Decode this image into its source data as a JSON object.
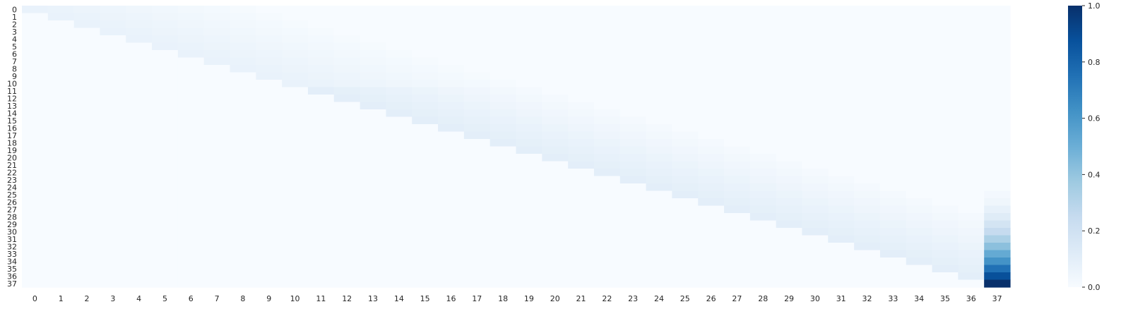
{
  "chart_data": {
    "type": "heatmap",
    "title": "",
    "xlabel": "",
    "ylabel": "",
    "x_labels": [
      "0",
      "1",
      "2",
      "3",
      "4",
      "5",
      "6",
      "7",
      "8",
      "9",
      "10",
      "11",
      "12",
      "13",
      "14",
      "15",
      "16",
      "17",
      "18",
      "19",
      "20",
      "21",
      "22",
      "23",
      "24",
      "25",
      "26",
      "27",
      "28",
      "29",
      "30",
      "31",
      "32",
      "33",
      "34",
      "35",
      "36",
      "37"
    ],
    "y_labels": [
      "0",
      "1",
      "2",
      "3",
      "4",
      "5",
      "6",
      "7",
      "8",
      "9",
      "10",
      "11",
      "12",
      "13",
      "14",
      "15",
      "16",
      "17",
      "18",
      "19",
      "20",
      "21",
      "22",
      "23",
      "24",
      "25",
      "26",
      "27",
      "28",
      "29",
      "30",
      "31",
      "32",
      "33",
      "34",
      "35",
      "36",
      "37"
    ],
    "value_range": [
      0,
      1
    ],
    "colormap": "Blues",
    "colorbar_ticks": [
      "0.0",
      "0.2",
      "0.4",
      "0.6",
      "0.8",
      "1.0"
    ],
    "colorbar_tick_values": [
      0,
      0.2,
      0.4,
      0.6,
      0.8,
      1.0
    ],
    "structure": "row i has nonzero values only for columns i..i+8 (upper band); diagonal ~0.06-0.10 fading to ~0.01 at the band edge; column 37 rises from ~0.02 at row 25 to 1.0 at row 37",
    "column_37_values": {
      "25": 0.02,
      "26": 0.04,
      "27": 0.08,
      "28": 0.12,
      "29": 0.18,
      "30": 0.25,
      "31": 0.33,
      "32": 0.42,
      "33": 0.52,
      "34": 0.62,
      "35": 0.75,
      "36": 0.88,
      "37": 1.0
    }
  }
}
